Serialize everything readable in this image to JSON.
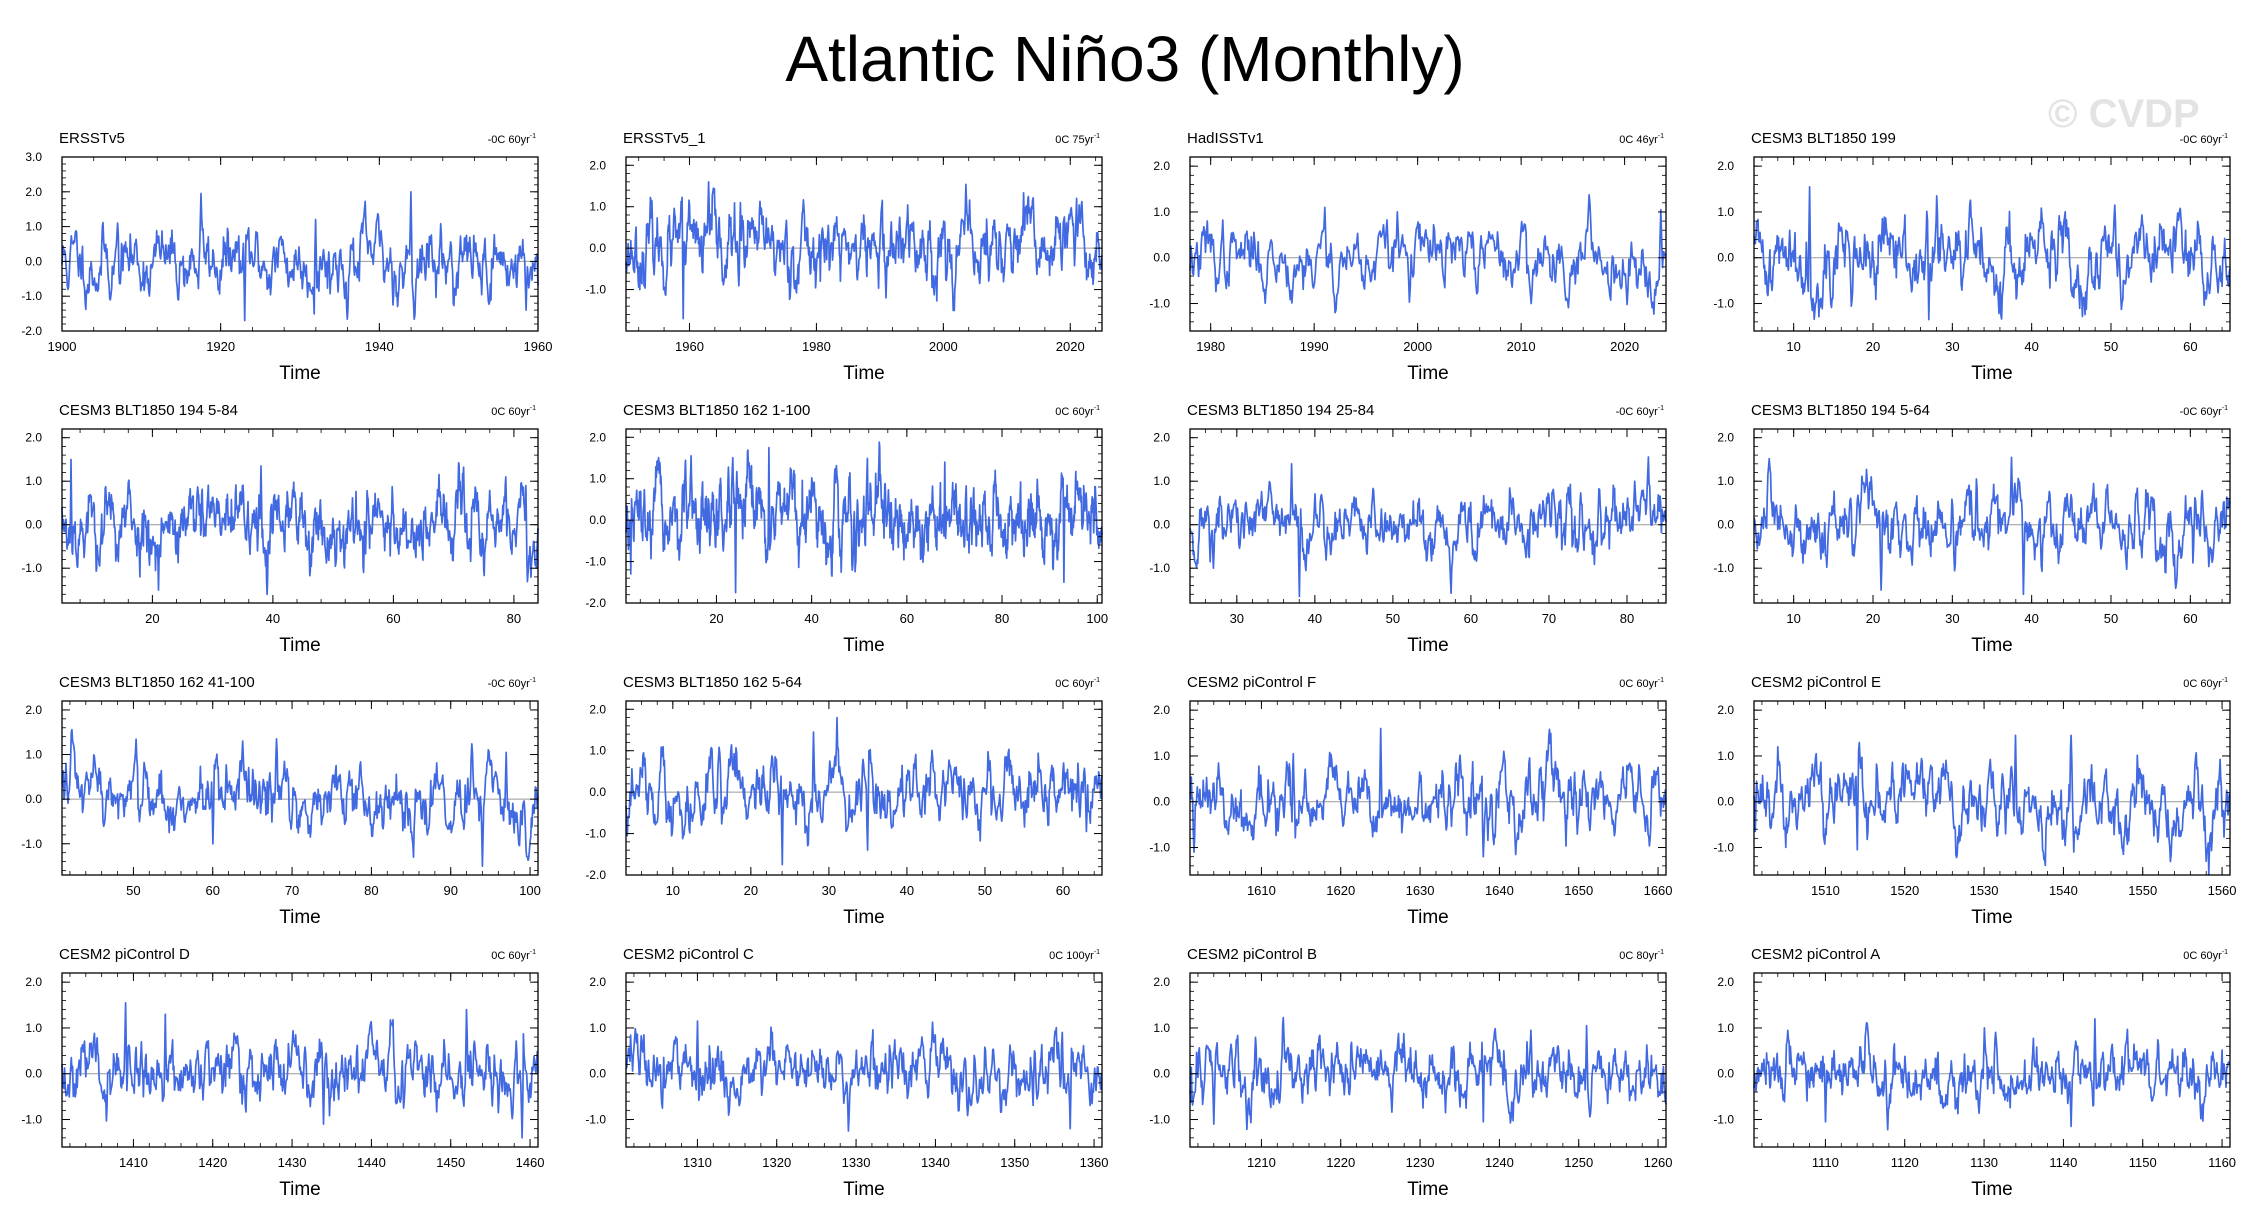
{
  "title": "Atlantic Niño3 (Monthly)",
  "watermark": "© CVDP",
  "line_color": "#4169e1",
  "chart_data": [
    {
      "type": "line",
      "title": "ERSSTv5",
      "trend": "-0C 60yr",
      "trend_unit": "-1",
      "xlabel": "Time",
      "xlim": [
        1900,
        1960
      ],
      "xticks": [
        1900,
        1920,
        1940,
        1960
      ],
      "ylim": [
        -2,
        3
      ],
      "yticks": [
        -2,
        -1,
        0,
        1,
        2,
        3
      ],
      "seed": 11,
      "amp": 0.55,
      "spikes": [
        [
          1917.5,
          1.95
        ],
        [
          1923,
          -1.7
        ],
        [
          1944,
          2.0
        ],
        [
          1958.5,
          -1.4
        ],
        [
          1907,
          1.1
        ],
        [
          1932,
          1.2
        ]
      ]
    },
    {
      "type": "line",
      "title": "ERSSTv5_1",
      "trend": "0C 75yr",
      "trend_unit": "-1",
      "xlabel": "Time",
      "xlim": [
        1950,
        2025
      ],
      "xticks": [
        1960,
        1980,
        2000,
        2020
      ],
      "ylim": [
        -2,
        2.2
      ],
      "yticks": [
        -1,
        0,
        1,
        2
      ],
      "seed": 23,
      "amp": 0.5,
      "spikes": [
        [
          1963,
          1.6
        ],
        [
          1959,
          -1.7
        ],
        [
          2021,
          1.2
        ],
        [
          1968,
          1.1
        ],
        [
          1991,
          -1.2
        ]
      ]
    },
    {
      "type": "line",
      "title": "HadISSTv1",
      "trend": "0C 46yr",
      "trend_unit": "-1",
      "xlabel": "Time",
      "xlim": [
        1978,
        2024
      ],
      "xticks": [
        1980,
        1990,
        2000,
        2010,
        2020
      ],
      "ylim": [
        -1.6,
        2.2
      ],
      "yticks": [
        -1,
        0,
        1,
        2
      ],
      "seed": 37,
      "amp": 0.42,
      "spikes": [
        [
          1991,
          1.1
        ],
        [
          1998,
          1.0
        ],
        [
          2023.5,
          1.05
        ],
        [
          1992,
          -1.2
        ],
        [
          2011,
          -1.0
        ]
      ]
    },
    {
      "type": "line",
      "title": "CESM3 BLT1850 199",
      "trend": "-0C 60yr",
      "trend_unit": "-1",
      "xlabel": "Time",
      "xlim": [
        5,
        65
      ],
      "xticks": [
        10,
        20,
        30,
        40,
        50,
        60
      ],
      "ylim": [
        -1.6,
        2.2
      ],
      "yticks": [
        -1,
        0,
        1,
        2
      ],
      "seed": 41,
      "amp": 0.48,
      "spikes": [
        [
          12,
          1.55
        ],
        [
          28,
          1.35
        ],
        [
          27,
          -1.35
        ],
        [
          50.5,
          1.15
        ],
        [
          62,
          -0.9
        ]
      ]
    },
    {
      "type": "line",
      "title": "CESM3 BLT1850 194 5-84",
      "trend": "0C 60yr",
      "trend_unit": "-1",
      "xlabel": "Time",
      "xlim": [
        5,
        84
      ],
      "xticks": [
        20,
        40,
        60,
        80
      ],
      "ylim": [
        -1.8,
        2.2
      ],
      "yticks": [
        -1,
        0,
        1,
        2
      ],
      "seed": 53,
      "amp": 0.48,
      "spikes": [
        [
          6.5,
          1.5
        ],
        [
          38,
          1.35
        ],
        [
          39,
          -1.6
        ],
        [
          21,
          -1.5
        ],
        [
          82,
          0.9
        ]
      ]
    },
    {
      "type": "line",
      "title": "CESM3 BLT1850 162 1-100",
      "trend": "0C 60yr",
      "trend_unit": "-1",
      "xlabel": "Time",
      "xlim": [
        1,
        101
      ],
      "xticks": [
        20,
        40,
        60,
        80,
        100
      ],
      "ylim": [
        -2,
        2.2
      ],
      "yticks": [
        -2,
        -1,
        0,
        1,
        2
      ],
      "seed": 67,
      "amp": 0.5,
      "spikes": [
        [
          31,
          1.75
        ],
        [
          24,
          -1.75
        ],
        [
          68,
          1.4
        ],
        [
          93,
          -1.5
        ],
        [
          2,
          -1.3
        ]
      ]
    },
    {
      "type": "line",
      "title": "CESM3 BLT1850 194 25-84",
      "trend": "-0C 60yr",
      "trend_unit": "-1",
      "xlabel": "Time",
      "xlim": [
        24,
        85
      ],
      "xticks": [
        30,
        40,
        50,
        60,
        70,
        80
      ],
      "ylim": [
        -1.8,
        2.2
      ],
      "yticks": [
        -1,
        0,
        1,
        2
      ],
      "seed": 71,
      "amp": 0.42,
      "spikes": [
        [
          37,
          1.4
        ],
        [
          38,
          -1.65
        ],
        [
          81,
          1.0
        ],
        [
          27,
          -1.0
        ]
      ]
    },
    {
      "type": "line",
      "title": "CESM3 BLT1850 194 5-64",
      "trend": "-0C 60yr",
      "trend_unit": "-1",
      "xlabel": "Time",
      "xlim": [
        5,
        65
      ],
      "xticks": [
        10,
        20,
        30,
        40,
        50,
        60
      ],
      "ylim": [
        -1.8,
        2.2
      ],
      "yticks": [
        -1,
        0,
        1,
        2
      ],
      "seed": 83,
      "amp": 0.45,
      "spikes": [
        [
          37.5,
          1.55
        ],
        [
          39,
          -1.6
        ],
        [
          7,
          1.3
        ],
        [
          21,
          -1.5
        ],
        [
          33,
          1.05
        ]
      ]
    },
    {
      "type": "line",
      "title": "CESM3 BLT1850 162 41-100",
      "trend": "-0C 60yr",
      "trend_unit": "-1",
      "xlabel": "Time",
      "xlim": [
        41,
        101
      ],
      "xticks": [
        50,
        60,
        70,
        80,
        90,
        100
      ],
      "ylim": [
        -1.7,
        2.2
      ],
      "yticks": [
        -1,
        0,
        1,
        2
      ],
      "seed": 97,
      "amp": 0.44,
      "spikes": [
        [
          68,
          1.35
        ],
        [
          94,
          -1.5
        ],
        [
          41.5,
          0.8
        ],
        [
          97,
          1.05
        ],
        [
          60,
          -1.0
        ]
      ]
    },
    {
      "type": "line",
      "title": "CESM3 BLT1850 162 5-64",
      "trend": "0C 60yr",
      "trend_unit": "-1",
      "xlabel": "Time",
      "xlim": [
        4,
        65
      ],
      "xticks": [
        10,
        20,
        30,
        40,
        50,
        60
      ],
      "ylim": [
        -2,
        2.2
      ],
      "yticks": [
        -2,
        -1,
        0,
        1,
        2
      ],
      "seed": 103,
      "amp": 0.48,
      "spikes": [
        [
          31,
          1.8
        ],
        [
          24,
          -1.75
        ],
        [
          28,
          1.45
        ],
        [
          35,
          -1.4
        ],
        [
          63,
          -0.95
        ]
      ]
    },
    {
      "type": "line",
      "title": "CESM2 piControl F",
      "trend": "0C 60yr",
      "trend_unit": "-1",
      "xlabel": "Time",
      "xlim": [
        1601,
        1661
      ],
      "xticks": [
        1610,
        1620,
        1630,
        1640,
        1650,
        1660
      ],
      "ylim": [
        -1.6,
        2.2
      ],
      "yticks": [
        -1,
        0,
        1,
        2
      ],
      "seed": 109,
      "amp": 0.42,
      "spikes": [
        [
          1625,
          1.6
        ],
        [
          1614,
          1.05
        ],
        [
          1638,
          -1.2
        ],
        [
          1660,
          0.75
        ],
        [
          1601.5,
          -1.1
        ]
      ]
    },
    {
      "type": "line",
      "title": "CESM2 piControl E",
      "trend": "0C 60yr",
      "trend_unit": "-1",
      "xlabel": "Time",
      "xlim": [
        1501,
        1561
      ],
      "xticks": [
        1510,
        1520,
        1530,
        1540,
        1550,
        1560
      ],
      "ylim": [
        -1.6,
        2.2
      ],
      "yticks": [
        -1,
        0,
        1,
        2
      ],
      "seed": 127,
      "amp": 0.44,
      "spikes": [
        [
          1534,
          1.45
        ],
        [
          1541,
          1.45
        ],
        [
          1558,
          -1.3
        ],
        [
          1504,
          1.2
        ],
        [
          1514,
          -1.05
        ]
      ]
    },
    {
      "type": "line",
      "title": "CESM2 piControl D",
      "trend": "0C 60yr",
      "trend_unit": "-1",
      "xlabel": "Time",
      "xlim": [
        1401,
        1461
      ],
      "xticks": [
        1410,
        1420,
        1430,
        1440,
        1450,
        1460
      ],
      "ylim": [
        -1.6,
        2.2
      ],
      "yticks": [
        -1,
        0,
        1,
        2
      ],
      "seed": 131,
      "amp": 0.42,
      "spikes": [
        [
          1409,
          1.55
        ],
        [
          1452,
          1.4
        ],
        [
          1459,
          -1.4
        ],
        [
          1414,
          1.3
        ],
        [
          1434,
          -1.1
        ]
      ]
    },
    {
      "type": "line",
      "title": "CESM2 piControl C",
      "trend": "0C 100yr",
      "trend_unit": "-1",
      "xlabel": "Time",
      "xlim": [
        1301,
        1361
      ],
      "xticks": [
        1310,
        1320,
        1330,
        1340,
        1350,
        1360
      ],
      "ylim": [
        -1.6,
        2.2
      ],
      "yticks": [
        -1,
        0,
        1,
        2
      ],
      "seed": 149,
      "amp": 0.4,
      "spikes": [
        [
          1310,
          1.15
        ],
        [
          1329,
          -1.25
        ],
        [
          1357,
          -1.2
        ],
        [
          1356,
          0.9
        ],
        [
          1340,
          0.85
        ]
      ]
    },
    {
      "type": "line",
      "title": "CESM2 piControl B",
      "trend": "0C 80yr",
      "trend_unit": "-1",
      "xlabel": "Time",
      "xlim": [
        1201,
        1261
      ],
      "xticks": [
        1210,
        1220,
        1230,
        1240,
        1250,
        1260
      ],
      "ylim": [
        -1.6,
        2.2
      ],
      "yticks": [
        -1,
        0,
        1,
        2
      ],
      "seed": 157,
      "amp": 0.38,
      "spikes": [
        [
          1251,
          1.05
        ],
        [
          1238,
          -1.05
        ],
        [
          1244,
          0.95
        ],
        [
          1204,
          -1.1
        ]
      ]
    },
    {
      "type": "line",
      "title": "CESM2 piControl A",
      "trend": "0C 60yr",
      "trend_unit": "-1",
      "xlabel": "Time",
      "xlim": [
        1101,
        1161
      ],
      "xticks": [
        1110,
        1120,
        1130,
        1140,
        1150,
        1160
      ],
      "ylim": [
        -1.6,
        2.2
      ],
      "yticks": [
        -1,
        0,
        1,
        2
      ],
      "seed": 167,
      "amp": 0.38,
      "spikes": [
        [
          1144,
          1.2
        ],
        [
          1141,
          -1.15
        ],
        [
          1130,
          1.0
        ],
        [
          1110,
          -1.05
        ]
      ]
    }
  ]
}
